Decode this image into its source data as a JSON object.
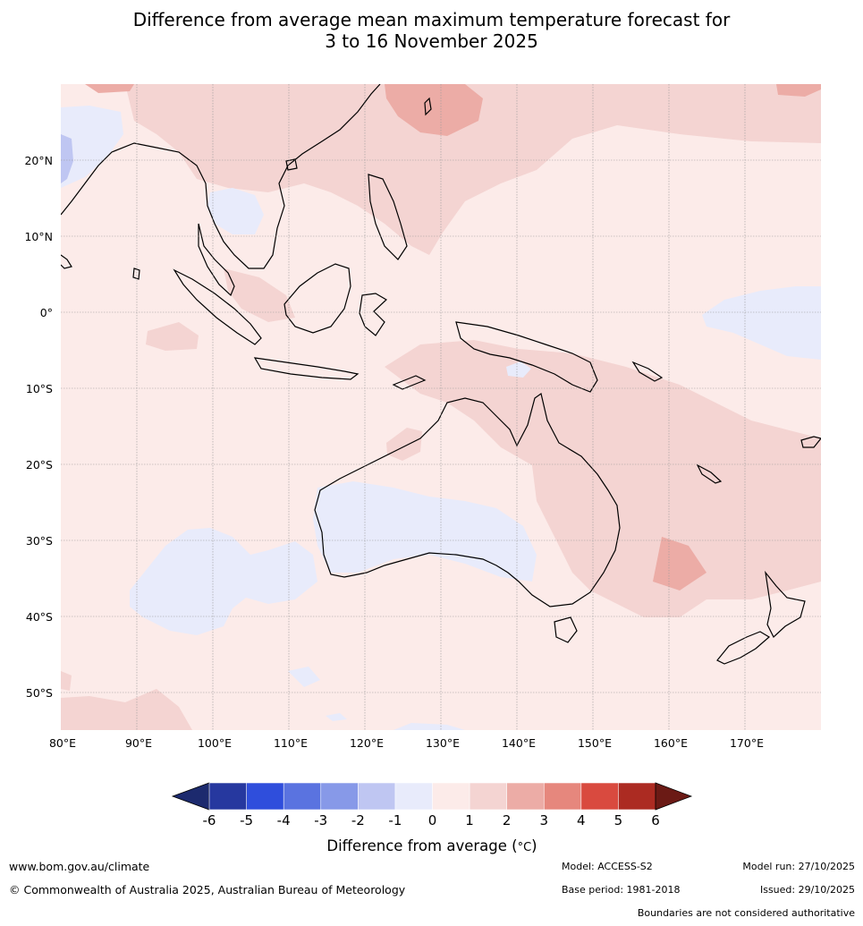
{
  "title": {
    "line1": "Difference from average mean maximum temperature forecast for",
    "line2": "3 to 16 November 2025"
  },
  "map": {
    "lat_labels": [
      "20°N",
      "10°N",
      "0°",
      "10°S",
      "20°S",
      "30°S",
      "40°S",
      "50°S"
    ],
    "lat_values": [
      20,
      10,
      0,
      -10,
      -20,
      -30,
      -40,
      -50
    ],
    "lon_labels": [
      "80°E",
      "90°E",
      "100°E",
      "110°E",
      "120°E",
      "130°E",
      "140°E",
      "150°E",
      "160°E",
      "170°E"
    ],
    "lon_values": [
      80,
      90,
      100,
      110,
      120,
      130,
      140,
      150,
      160,
      170
    ],
    "lon_range": [
      80,
      180
    ],
    "lat_range": [
      -55,
      30
    ]
  },
  "colorbar": {
    "ticks": [
      "-6",
      "-5",
      "-4",
      "-3",
      "-2",
      "-1",
      "0",
      "1",
      "2",
      "3",
      "4",
      "5",
      "6"
    ],
    "colors": [
      "#26389f",
      "#2f4edc",
      "#5a73e0",
      "#8799e8",
      "#bfc6f2",
      "#e8ebfb",
      "#fcebe9",
      "#f4d4d2",
      "#ecaca6",
      "#e6877d",
      "#d94a3f",
      "#ac2b22"
    ],
    "low_extend_color": "#1c2a6e",
    "high_extend_color": "#6b1a15",
    "label": "Difference from average (",
    "label_unit": "°C",
    "label_close": ")"
  },
  "footer": {
    "website": "www.bom.gov.au/climate",
    "copyright": "© Commonwealth of Australia 2025, Australian Bureau of Meteorology",
    "model": "Model: ACCESS-S2",
    "base_period": "Base period: 1981-2018",
    "model_run": "Model run: 27/10/2025",
    "issued": "Issued: 29/10/2025",
    "disclaimer": "Boundaries are not considered authoritative"
  }
}
